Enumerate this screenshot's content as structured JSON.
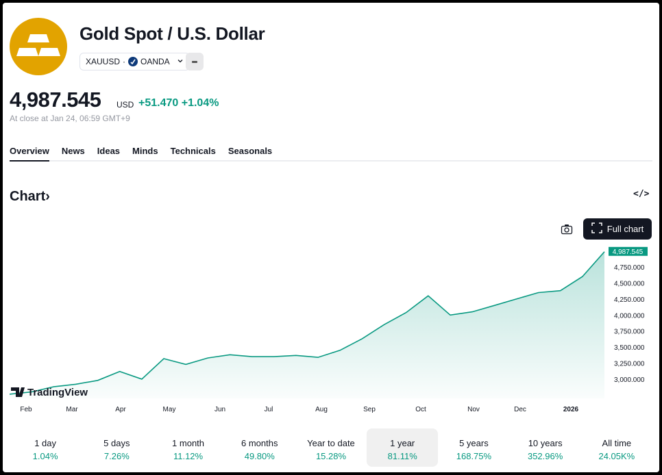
{
  "symbol": {
    "title": "Gold Spot / U.S. Dollar",
    "ticker": "XAUUSD",
    "separator": "·",
    "broker": "OANDA",
    "logo_icon": "gold-bars-icon",
    "accent": "#e2a300"
  },
  "quote": {
    "price": "4,987.545",
    "currency": "USD",
    "change": "+51.470",
    "change_pct": "+1.04%",
    "close_note": "At close at Jan 24, 06:59 GMT+9",
    "positive_color": "#089981"
  },
  "tabs": [
    {
      "label": "Overview",
      "active": true
    },
    {
      "label": "News"
    },
    {
      "label": "Ideas"
    },
    {
      "label": "Minds"
    },
    {
      "label": "Technicals"
    },
    {
      "label": "Seasonals"
    }
  ],
  "chart_section": {
    "heading": "Chart",
    "chevron": "›",
    "embed_icon": "code-icon",
    "camera_icon": "camera-icon",
    "full_chart_label": "Full chart",
    "watermark": "TradingView"
  },
  "chart_data": {
    "type": "area",
    "x": [
      "Jan 24",
      "Feb 1",
      "Feb 15",
      "Mar 1",
      "Mar 15",
      "Apr 1",
      "Apr 15",
      "May 1",
      "May 15",
      "Jun 1",
      "Jun 15",
      "Jul 1",
      "Jul 15",
      "Aug 1",
      "Aug 15",
      "Sep 1",
      "Sep 15",
      "Oct 1",
      "Oct 10",
      "Oct 20",
      "Nov 1",
      "Nov 15",
      "Dec 1",
      "Dec 15",
      "Jan 1",
      "Jan 10",
      "Jan 17",
      "Jan 23"
    ],
    "values": [
      2765,
      2800,
      2880,
      2920,
      2980,
      3120,
      3000,
      3320,
      3230,
      3330,
      3380,
      3350,
      3350,
      3370,
      3340,
      3450,
      3630,
      3850,
      4040,
      4300,
      4000,
      4050,
      4150,
      4250,
      4350,
      4380,
      4600,
      4987.545
    ],
    "x_tick_labels": [
      "Feb",
      "Mar",
      "Apr",
      "May",
      "Jun",
      "Jul",
      "Aug",
      "Sep",
      "Oct",
      "Nov",
      "Dec",
      "2026"
    ],
    "y_tick_labels": [
      "4,750.000",
      "4,500.000",
      "4,250.000",
      "4,000.000",
      "3,750.000",
      "3,500.000",
      "3,250.000",
      "3,000.000"
    ],
    "y_ticks": [
      4750,
      4500,
      4250,
      4000,
      3750,
      3500,
      3250,
      3000
    ],
    "last_value_label": "4,987.545",
    "line_color": "#089981",
    "grid": false
  },
  "periods": [
    {
      "label": "1 day",
      "value": "1.04%"
    },
    {
      "label": "5 days",
      "value": "7.26%"
    },
    {
      "label": "1 month",
      "value": "11.12%"
    },
    {
      "label": "6 months",
      "value": "49.80%"
    },
    {
      "label": "Year to date",
      "value": "15.28%"
    },
    {
      "label": "1 year",
      "value": "81.11%",
      "active": true
    },
    {
      "label": "5 years",
      "value": "168.75%"
    },
    {
      "label": "10 years",
      "value": "352.96%"
    },
    {
      "label": "All time",
      "value": "24.05K%"
    }
  ]
}
